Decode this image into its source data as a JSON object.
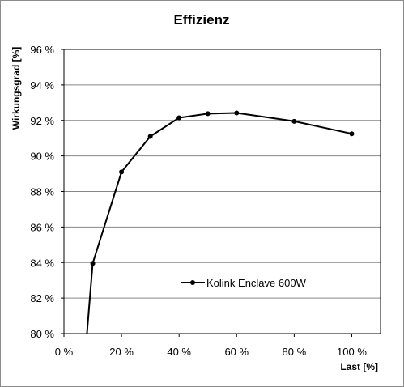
{
  "chart_data": {
    "type": "line",
    "title": "Effizienz",
    "xlabel": "Last [%]",
    "ylabel": "Wirkungsgrad [%]",
    "xlim": [
      0,
      110
    ],
    "ylim": [
      80,
      96
    ],
    "x_ticks": [
      0,
      20,
      40,
      60,
      80,
      100
    ],
    "x_tick_labels": [
      "0 %",
      "20 %",
      "40 %",
      "60 %",
      "80 %",
      "100 %"
    ],
    "y_ticks": [
      80,
      82,
      84,
      86,
      88,
      90,
      92,
      94,
      96
    ],
    "y_tick_labels": [
      "80 %",
      "82 %",
      "84 %",
      "86 %",
      "88 %",
      "90 %",
      "92 %",
      "94 %",
      "96 %"
    ],
    "grid": "horizontal",
    "legend_position": "lower-right",
    "series": [
      {
        "name": "Kolink Enclave 600W",
        "color": "#000000",
        "x": [
          8,
          10,
          20,
          30,
          40,
          50,
          60,
          80,
          100
        ],
        "y": [
          80.0,
          83.95,
          89.1,
          91.1,
          92.15,
          92.38,
          92.42,
          91.95,
          91.25
        ],
        "markers": [
          false,
          true,
          true,
          true,
          true,
          true,
          true,
          true,
          true
        ]
      }
    ]
  }
}
